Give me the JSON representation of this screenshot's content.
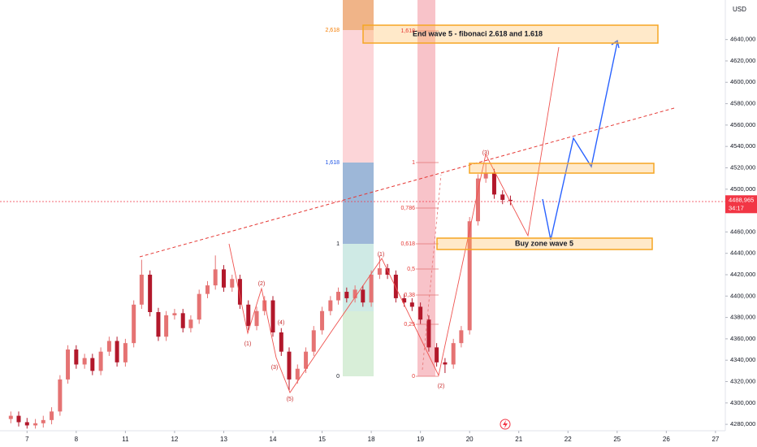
{
  "chart_data": {
    "type": "candlestick",
    "currency": "USD",
    "x": [
      -0.33,
      -0.17,
      0,
      0.17,
      0.33,
      0.5,
      0.67,
      0.83,
      1,
      1.17,
      1.33,
      1.5,
      1.67,
      1.83,
      2,
      2.17,
      2.33,
      2.5,
      2.67,
      2.83,
      3,
      3.17,
      3.33,
      3.5,
      3.67,
      3.83,
      4,
      4.17,
      4.33,
      4.5,
      4.67,
      4.83,
      5,
      5.17,
      5.33,
      5.5,
      5.67,
      5.83,
      6,
      6.17,
      6.33,
      6.5,
      6.67,
      6.83,
      7,
      7.17,
      7.33,
      7.5,
      7.67,
      7.83,
      8,
      8.17,
      8.33,
      8.5,
      8.67,
      8.83,
      9,
      9.17,
      9.33,
      9.5,
      9.67,
      9.83
    ],
    "open": [
      4285,
      4288,
      4282,
      4279,
      4281,
      4284,
      4292,
      4322,
      4350,
      4336,
      4342,
      4330,
      4348,
      4358,
      4338,
      4356,
      4392,
      4420,
      4385,
      4362,
      4382,
      4384,
      4370,
      4378,
      4402,
      4410,
      4425,
      4408,
      4416,
      4392,
      4372,
      4386,
      4396,
      4366,
      4348,
      4322,
      4332,
      4348,
      4368,
      4386,
      4396,
      4404,
      4398,
      4406,
      4394,
      4420,
      4426,
      4420,
      4398,
      4394,
      4390,
      4378,
      4352,
      4338,
      4336,
      4356,
      4368,
      4470,
      4510,
      4515,
      4495,
      4490
    ],
    "high": [
      4292,
      4292,
      4286,
      4285,
      4288,
      4296,
      4326,
      4354,
      4354,
      4346,
      4346,
      4352,
      4362,
      4362,
      4360,
      4396,
      4434,
      4424,
      4389,
      4386,
      4388,
      4388,
      4382,
      4406,
      4414,
      4438,
      4429,
      4420,
      4420,
      4396,
      4390,
      4400,
      4400,
      4370,
      4352,
      4336,
      4352,
      4372,
      4390,
      4400,
      4408,
      4408,
      4410,
      4410,
      4424,
      4438,
      4430,
      4424,
      4402,
      4398,
      4394,
      4382,
      4356,
      4342,
      4360,
      4372,
      4474,
      4514,
      4524,
      4519,
      4499,
      4494
    ],
    "low": [
      4281,
      4278,
      4276,
      4276,
      4277,
      4280,
      4288,
      4318,
      4332,
      4332,
      4326,
      4326,
      4344,
      4334,
      4334,
      4352,
      4388,
      4381,
      4358,
      4358,
      4378,
      4366,
      4366,
      4374,
      4398,
      4406,
      4404,
      4404,
      4388,
      4368,
      4368,
      4382,
      4362,
      4344,
      4312,
      4318,
      4328,
      4344,
      4364,
      4382,
      4392,
      4394,
      4394,
      4390,
      4390,
      4416,
      4416,
      4394,
      4390,
      4386,
      4374,
      4348,
      4334,
      4328,
      4332,
      4352,
      4364,
      4466,
      4506,
      4491,
      4486,
      4485
    ],
    "close": [
      4288,
      4282,
      4279,
      4281,
      4284,
      4292,
      4322,
      4350,
      4336,
      4342,
      4330,
      4348,
      4358,
      4338,
      4356,
      4392,
      4420,
      4385,
      4362,
      4382,
      4384,
      4370,
      4378,
      4402,
      4410,
      4425,
      4408,
      4416,
      4392,
      4372,
      4386,
      4396,
      4366,
      4348,
      4322,
      4332,
      4348,
      4368,
      4386,
      4396,
      4404,
      4398,
      4406,
      4394,
      4420,
      4426,
      4420,
      4398,
      4394,
      4390,
      4378,
      4352,
      4338,
      4336,
      4356,
      4368,
      4470,
      4510,
      4515,
      4495,
      4490,
      4489
    ],
    "up_color": "#e57373",
    "down_color": "#b2182b",
    "xlim": [
      -0.55,
      14.2
    ],
    "xticks": [
      {
        "value": 0,
        "label": "7"
      },
      {
        "value": 1,
        "label": "8"
      },
      {
        "value": 2,
        "label": "11"
      },
      {
        "value": 3,
        "label": "12"
      },
      {
        "value": 4,
        "label": "13"
      },
      {
        "value": 5,
        "label": "14"
      },
      {
        "value": 6,
        "label": "15"
      },
      {
        "value": 7,
        "label": "18"
      },
      {
        "value": 8,
        "label": "19"
      },
      {
        "value": 9,
        "label": "20"
      },
      {
        "value": 10,
        "label": "21"
      },
      {
        "value": 11,
        "label": "22"
      },
      {
        "value": 12,
        "label": "25"
      },
      {
        "value": 13,
        "label": "26"
      },
      {
        "value": 14,
        "label": "27"
      }
    ],
    "ylim": [
      4274,
      4677
    ],
    "yticks": [
      {
        "value": 4280,
        "label": "4280,000"
      },
      {
        "value": 4300,
        "label": "4300,000"
      },
      {
        "value": 4320,
        "label": "4320,000"
      },
      {
        "value": 4340,
        "label": "4340,000"
      },
      {
        "value": 4360,
        "label": "4360,000"
      },
      {
        "value": 4380,
        "label": "4380,000"
      },
      {
        "value": 4400,
        "label": "4400,000"
      },
      {
        "value": 4420,
        "label": "4420,000"
      },
      {
        "value": 4440,
        "label": "4440,000"
      },
      {
        "value": 4460,
        "label": "4460,000"
      },
      {
        "value": 4480,
        "label": "4480,000"
      },
      {
        "value": 4500,
        "label": "4500,000"
      },
      {
        "value": 4520,
        "label": "4520,000"
      },
      {
        "value": 4540,
        "label": "4540,000"
      },
      {
        "value": 4560,
        "label": "4560,000"
      },
      {
        "value": 4580,
        "label": "4580,000"
      },
      {
        "value": 4600,
        "label": "4600,000"
      },
      {
        "value": 4620,
        "label": "4620,000"
      },
      {
        "value": 4640,
        "label": "4640,000"
      }
    ],
    "last_price": {
      "value": 4488.965,
      "label": "4488,965"
    },
    "countdown": "34:17",
    "annotations": {
      "fib_left": [
        "2,618",
        "1,618",
        "1",
        "0"
      ],
      "fib_right": [
        "1,618",
        "1",
        "0,786",
        "0,618",
        "0,5",
        "0,38",
        "0,25",
        "0"
      ],
      "waves": [
        "(1)",
        "(2)",
        "(1)",
        "(3)",
        "(4)",
        "(5)",
        "(3)",
        "(2)"
      ],
      "target_note": "End  wave 5 - fibonaci 2.618 and 1.618",
      "buy_note": "Buy zone wave 5"
    }
  }
}
